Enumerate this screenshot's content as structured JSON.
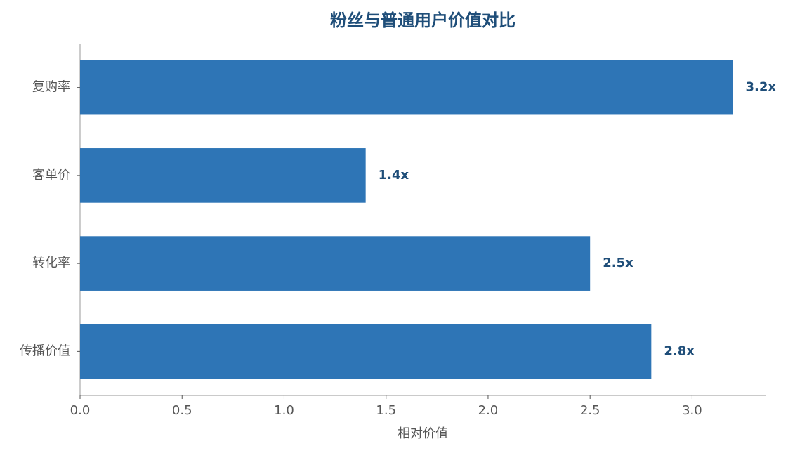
{
  "chart_data": {
    "type": "barh",
    "title": "粉丝与普通用户价值对比",
    "categories": [
      "复购率",
      "客单价",
      "转化率",
      "传播价值"
    ],
    "values": [
      3.2,
      1.4,
      2.5,
      2.8
    ],
    "value_labels": [
      "3.2x",
      "1.4x",
      "2.5x",
      "2.8x"
    ],
    "color": "#2e75b6",
    "xlabel": "相对价值",
    "xlim": [
      0,
      3.36
    ],
    "xticks": [
      {
        "value": 0,
        "label": "0.0"
      },
      0.5,
      {
        "value": 1,
        "label": "1.0"
      },
      1.5,
      {
        "value": 2,
        "label": "2.0"
      },
      2.5,
      {
        "value": 3,
        "label": "3.0"
      }
    ],
    "grid": false
  }
}
